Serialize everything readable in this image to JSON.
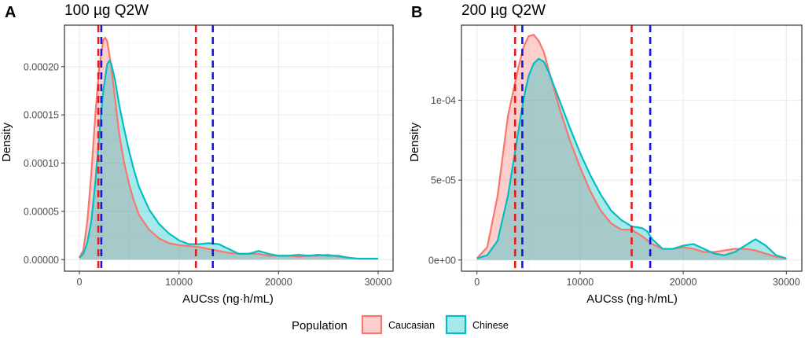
{
  "colors": {
    "caucasian_line": "#F8766D",
    "caucasian_fill": "rgba(248,118,109,0.35)",
    "chinese_line": "#00BFC4",
    "chinese_fill": "rgba(0,191,196,0.35)",
    "ref_red": "#E41A1C",
    "ref_blue": "#1515E6",
    "grid_major": "#EBEBEB",
    "grid_minor": "#F5F5F5",
    "panel_border": "#333333"
  },
  "legend": {
    "title": "Population",
    "items": [
      {
        "label": "Caucasian",
        "key": "caucasian"
      },
      {
        "label": "Chinese",
        "key": "chinese"
      }
    ]
  },
  "chart_data": [
    {
      "type": "area",
      "panel_letter": "A",
      "title": "100 µg Q2W",
      "xlabel": "AUCss (ng·h/mL)",
      "ylabel": "Density",
      "xlim": [
        -1500,
        31500
      ],
      "ylim": [
        -1.2e-05,
        0.000243
      ],
      "xticks": [
        0,
        10000,
        20000,
        30000
      ],
      "xtick_labels": [
        "0",
        "10000",
        "20000",
        "30000"
      ],
      "yticks": [
        0,
        5e-05,
        0.0001,
        0.00015,
        0.0002
      ],
      "ytick_labels": [
        "0.00000",
        "0.00005",
        "0.00010",
        "0.00015",
        "0.00020"
      ],
      "grid": true,
      "series": [
        {
          "name": "Caucasian",
          "key": "caucasian",
          "x": [
            0,
            400,
            800,
            1200,
            1600,
            2000,
            2400,
            2600,
            2800,
            3200,
            3600,
            4000,
            4500,
            5000,
            5500,
            6000,
            7000,
            8000,
            9000,
            10000,
            11000,
            12000,
            13000,
            14000,
            15000,
            16000,
            17000,
            18000,
            19000,
            20000,
            21000,
            22000,
            23000,
            24000,
            25000,
            26000,
            27000,
            28000,
            29000,
            30000
          ],
          "y": [
            2e-06,
            1e-05,
            4e-05,
            9e-05,
            0.00015,
            0.0002,
            0.000228,
            0.00023,
            0.000226,
            0.0002,
            0.000165,
            0.00013,
            0.0001,
            7.8e-05,
            6e-05,
            4.6e-05,
            3.1e-05,
            2.2e-05,
            1.7e-05,
            1.5e-05,
            1.4e-05,
            1.3e-05,
            1.1e-05,
            9e-06,
            7e-06,
            6e-06,
            6e-06,
            6e-06,
            4e-06,
            4e-06,
            4e-06,
            3e-06,
            4e-06,
            4e-06,
            5e-06,
            3e-06,
            2e-06,
            1e-06,
            1e-06,
            1e-06
          ]
        },
        {
          "name": "Chinese",
          "key": "chinese",
          "x": [
            0,
            400,
            800,
            1200,
            1600,
            2000,
            2400,
            2800,
            3000,
            3200,
            3600,
            4000,
            4500,
            5000,
            5500,
            6000,
            7000,
            8000,
            9000,
            10000,
            11000,
            12000,
            13000,
            14000,
            15000,
            16000,
            17000,
            18000,
            19000,
            20000,
            21000,
            22000,
            23000,
            24000,
            25000,
            26000,
            27000,
            28000,
            29000,
            30000
          ],
          "y": [
            2e-06,
            6e-06,
            1.8e-05,
            4e-05,
            8e-05,
            0.00013,
            0.000175,
            0.000203,
            0.000206,
            0.000203,
            0.000185,
            0.00016,
            0.000135,
            0.000112,
            9.2e-05,
            7.5e-05,
            5.2e-05,
            3.7e-05,
            2.7e-05,
            2e-05,
            1.6e-05,
            1.6e-05,
            1.7e-05,
            1.6e-05,
            1.1e-05,
            6e-06,
            6e-06,
            9e-06,
            6e-06,
            4e-06,
            4e-06,
            5e-06,
            4e-06,
            5e-06,
            4e-06,
            4e-06,
            2e-06,
            1e-06,
            1e-06,
            1e-06
          ]
        }
      ],
      "reference_lines": [
        {
          "x": 1900,
          "color_key": "ref_red"
        },
        {
          "x": 11700,
          "color_key": "ref_red"
        },
        {
          "x": 2200,
          "color_key": "ref_blue"
        },
        {
          "x": 13400,
          "color_key": "ref_blue"
        }
      ]
    },
    {
      "type": "area",
      "panel_letter": "B",
      "title": "200 µg Q2W",
      "xlabel": "AUCss (ng·h/mL)",
      "ylabel": "Density",
      "xlim": [
        -1500,
        31500
      ],
      "ylim": [
        -7e-06,
        0.000147
      ],
      "xticks": [
        0,
        10000,
        20000,
        30000
      ],
      "xtick_labels": [
        "0",
        "10000",
        "20000",
        "30000"
      ],
      "yticks": [
        0,
        5e-05,
        0.0001
      ],
      "ytick_labels": [
        "0e+00",
        "5e-05",
        "1e-04"
      ],
      "grid": true,
      "series": [
        {
          "name": "Caucasian",
          "key": "caucasian",
          "x": [
            0,
            1000,
            2000,
            3000,
            4000,
            4500,
            5000,
            5500,
            6000,
            6500,
            7000,
            8000,
            9000,
            10000,
            11000,
            12000,
            13000,
            14000,
            15000,
            16000,
            17000,
            18000,
            19000,
            20000,
            21000,
            22000,
            23000,
            24000,
            25000,
            26000,
            27000,
            28000,
            29000,
            30000
          ],
          "y": [
            1e-06,
            8e-06,
            4e-05,
            9e-05,
            0.00012,
            0.000133,
            0.00014,
            0.000141,
            0.000137,
            0.00013,
            0.000118,
            9.5e-05,
            7.5e-05,
            5.8e-05,
            4.3e-05,
            3.1e-05,
            2.3e-05,
            1.9e-05,
            1.9e-05,
            1.5e-05,
            1e-05,
            7e-06,
            7e-06,
            8e-06,
            7e-06,
            5e-06,
            5e-06,
            6e-06,
            7e-06,
            7e-06,
            6e-06,
            4e-06,
            2e-06,
            1e-06
          ]
        },
        {
          "name": "Chinese",
          "key": "chinese",
          "x": [
            0,
            1000,
            2000,
            3000,
            4000,
            4500,
            5000,
            5500,
            6000,
            6500,
            7000,
            8000,
            9000,
            10000,
            11000,
            12000,
            13000,
            14000,
            15000,
            16000,
            16500,
            17000,
            18000,
            19000,
            20000,
            21000,
            22000,
            23000,
            24000,
            25000,
            26000,
            27000,
            28000,
            29000,
            30000
          ],
          "y": [
            1e-06,
            3e-06,
            1.2e-05,
            4e-05,
            8e-05,
            0.0001,
            0.000115,
            0.000123,
            0.000126,
            0.000124,
            0.000117,
            0.0001,
            8.3e-05,
            6.7e-05,
            5.3e-05,
            4.1e-05,
            3.1e-05,
            2.5e-05,
            2.1e-05,
            2e-05,
            1.8e-05,
            1.3e-05,
            7e-06,
            7e-06,
            9e-06,
            1e-05,
            7e-06,
            4e-06,
            3e-06,
            5e-06,
            9e-06,
            1.3e-05,
            9e-06,
            3e-06,
            1e-06
          ]
        }
      ],
      "reference_lines": [
        {
          "x": 3700,
          "color_key": "ref_red"
        },
        {
          "x": 15000,
          "color_key": "ref_red"
        },
        {
          "x": 4400,
          "color_key": "ref_blue"
        },
        {
          "x": 16800,
          "color_key": "ref_blue"
        }
      ]
    }
  ]
}
